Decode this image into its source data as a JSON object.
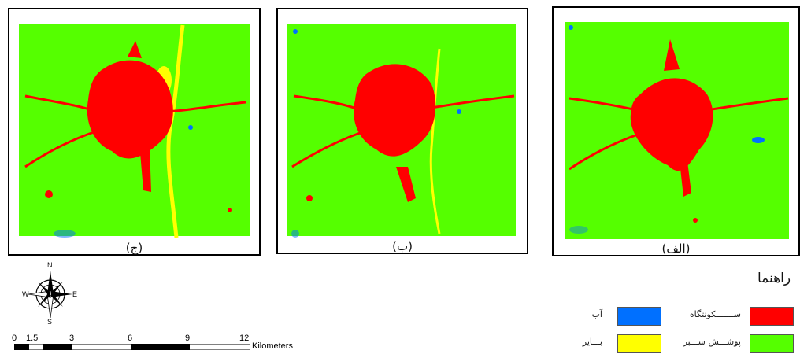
{
  "maps": [
    {
      "label": "(ج)"
    },
    {
      "label": "(ب)"
    },
    {
      "label": "(الف)"
    }
  ],
  "legend": {
    "title": "راهنما",
    "items": [
      {
        "label": "ســـــــکونتگاه",
        "color": "#ff0000"
      },
      {
        "label": "آب",
        "color": "#0070ff"
      },
      {
        "label": "پوشـــش ســـبز",
        "color": "#55ff00"
      },
      {
        "label": "بـــایر",
        "color": "#ffff00"
      }
    ]
  },
  "north_arrow": {
    "n": "N",
    "s": "S",
    "e": "E",
    "w": "W",
    "icon": "compass-rose-icon"
  },
  "scale_bar": {
    "ticks": [
      "0",
      "1.5",
      "3",
      "6",
      "9",
      "12"
    ],
    "units": "Kilometers"
  },
  "colors": {
    "settlement": "#ff0000",
    "water": "#0070ff",
    "vegetation": "#55ff00",
    "barren": "#ffff00"
  }
}
